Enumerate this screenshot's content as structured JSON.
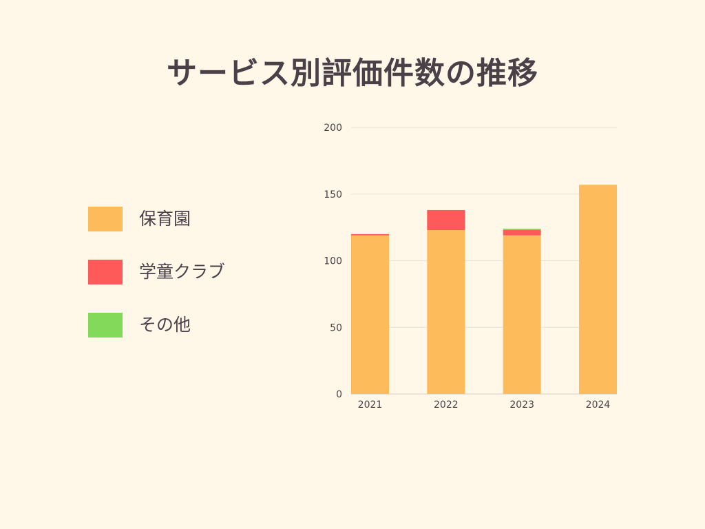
{
  "title": "サービス別評価件数の推移",
  "legend": {
    "items": [
      {
        "label": "保育園",
        "color": "#fdbb5b"
      },
      {
        "label": "学童クラブ",
        "color": "#ff5a5a"
      },
      {
        "label": "その他",
        "color": "#82d95a"
      }
    ]
  },
  "chart_data": {
    "type": "bar",
    "stacked": true,
    "title": "サービス別評価件数の推移",
    "xlabel": "",
    "ylabel": "",
    "categories": [
      "2021",
      "2022",
      "2023",
      "2024"
    ],
    "series": [
      {
        "name": "保育園",
        "color": "#fdbb5b",
        "values": [
          119,
          123,
          119,
          157
        ]
      },
      {
        "name": "学童クラブ",
        "color": "#ff5a5a",
        "values": [
          1,
          15,
          4,
          0
        ]
      },
      {
        "name": "その他",
        "color": "#82d95a",
        "values": [
          0,
          0,
          1,
          0
        ]
      }
    ],
    "ylim": [
      0,
      200
    ],
    "yticks": [
      0,
      50,
      100,
      150,
      200
    ],
    "grid": true,
    "legend_position": "left"
  }
}
